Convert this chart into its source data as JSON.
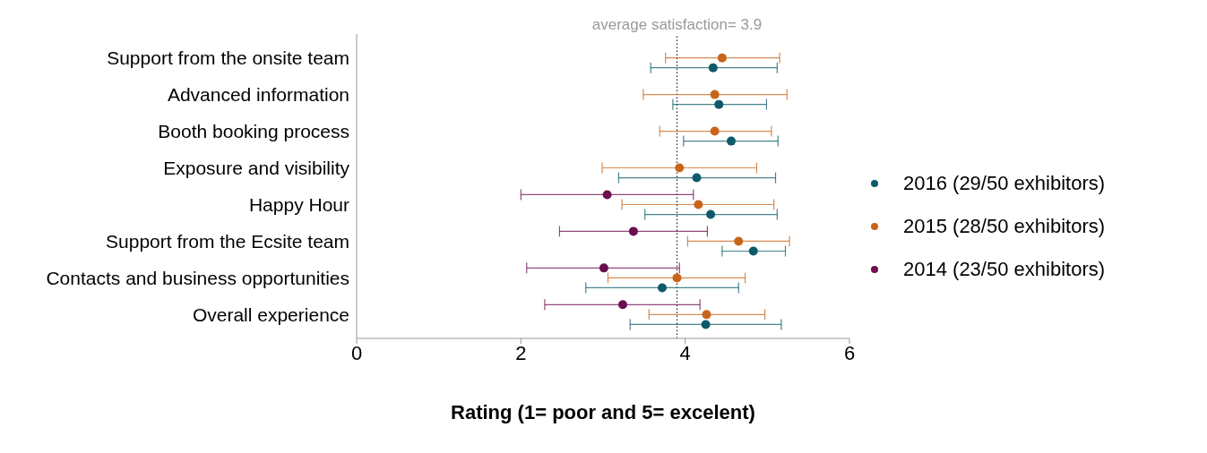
{
  "chart_data": {
    "type": "scatter",
    "xlabel": "Rating (1= poor and 5= excelent)",
    "categories": [
      "Support from the onsite team",
      "Advanced information",
      "Booth booking process",
      "Exposure and visibility",
      "Happy Hour",
      "Support from the Ecsite team",
      "Contacts and business opportunities",
      "Overall experience"
    ],
    "series": [
      {
        "name": "2016 (29/50 exhibitors)",
        "color": "#0e5a6b",
        "values": [
          4.34,
          4.41,
          4.56,
          4.14,
          4.31,
          4.83,
          3.72,
          4.25
        ],
        "errors": [
          [
            3.58,
            5.12
          ],
          [
            3.85,
            4.99
          ],
          [
            3.98,
            5.13
          ],
          [
            3.19,
            5.1
          ],
          [
            3.51,
            5.12
          ],
          [
            4.45,
            5.22
          ],
          [
            2.79,
            4.65
          ],
          [
            3.33,
            5.17
          ]
        ]
      },
      {
        "name": "2015 (28/50 exhibitors)",
        "color": "#c8651b",
        "values": [
          4.45,
          4.36,
          4.36,
          3.93,
          4.16,
          4.65,
          3.9,
          4.26
        ],
        "errors": [
          [
            3.76,
            5.15
          ],
          [
            3.49,
            5.24
          ],
          [
            3.69,
            5.05
          ],
          [
            2.99,
            4.87
          ],
          [
            3.23,
            5.08
          ],
          [
            4.03,
            5.27
          ],
          [
            3.06,
            4.73
          ],
          [
            3.56,
            4.97
          ]
        ]
      },
      {
        "name": "2014 (23/50 exhibitors)",
        "color": "#6b0f4f",
        "values": [
          null,
          null,
          null,
          null,
          3.05,
          3.37,
          3.01,
          3.24
        ],
        "errors": [
          null,
          null,
          null,
          null,
          [
            2.0,
            4.1
          ],
          [
            2.47,
            4.27
          ],
          [
            2.07,
            3.93
          ],
          [
            2.29,
            4.18
          ]
        ]
      }
    ],
    "orientation": "horizontal",
    "xlim": [
      0,
      6
    ],
    "xticks": [
      0,
      2,
      4,
      6
    ],
    "ref_lines": [
      {
        "axis": "x",
        "value": 3.9,
        "label": "average satisfaction= 3.9",
        "line_style": "dotted",
        "color": "#000000"
      }
    ],
    "legend": "right",
    "marker": "circle",
    "grid": false
  }
}
